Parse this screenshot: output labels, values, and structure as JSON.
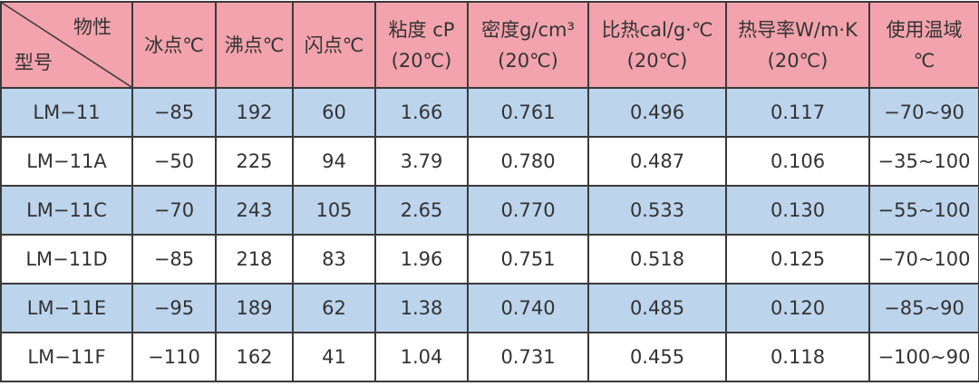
{
  "table": {
    "corner": {
      "top": "物性",
      "bottom": "型号"
    },
    "header": [
      [
        "冰点℃"
      ],
      [
        "沸点℃"
      ],
      [
        "闪点℃"
      ],
      [
        "粘度 cP",
        "(20℃)"
      ],
      [
        "密度g/cm³",
        "(20℃)"
      ],
      [
        "比热cal/g·℃",
        "(20℃)"
      ],
      [
        "热导率W/m·K",
        "(20℃)"
      ],
      [
        "使用温域",
        "℃"
      ]
    ],
    "rows": [
      [
        "LM−11",
        "−85",
        "192",
        "60",
        "1.66",
        "0.761",
        "0.496",
        "0.117",
        "−70~90"
      ],
      [
        "LM−11A",
        "−50",
        "225",
        "94",
        "3.79",
        "0.780",
        "0.487",
        "0.106",
        "−35~100"
      ],
      [
        "LM−11C",
        "−70",
        "243",
        "105",
        "2.65",
        "0.770",
        "0.533",
        "0.130",
        "−55~100"
      ],
      [
        "LM−11D",
        "−85",
        "218",
        "83",
        "1.96",
        "0.751",
        "0.518",
        "0.125",
        "−70~100"
      ],
      [
        "LM−11E",
        "−95",
        "189",
        "62",
        "1.38",
        "0.740",
        "0.485",
        "0.120",
        "−85~90"
      ],
      [
        "LM−11F",
        "−110",
        "162",
        "41",
        "1.04",
        "0.731",
        "0.455",
        "0.118",
        "−100~90"
      ]
    ]
  }
}
